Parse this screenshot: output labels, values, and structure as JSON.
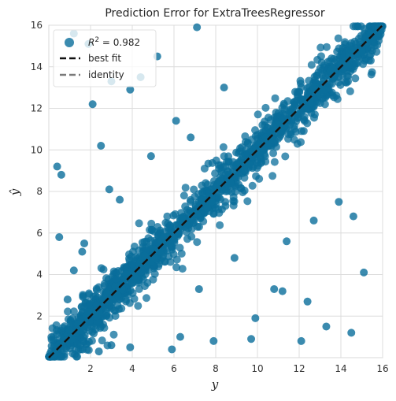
{
  "chart_data": {
    "type": "scatter",
    "title": "Prediction Error for ExtraTreesRegressor",
    "xlabel": "y",
    "ylabel": "ŷ",
    "xlim": [
      0,
      16
    ],
    "ylim": [
      0,
      16
    ],
    "x_ticks": [
      "2",
      "4",
      "6",
      "8",
      "10",
      "12",
      "14",
      "16"
    ],
    "y_ticks": [
      "2",
      "4",
      "6",
      "8",
      "10",
      "12",
      "14",
      "16"
    ],
    "grid": true,
    "legend_position": "top-left",
    "legend": {
      "r2_label": "R",
      "r2_value": " = 0.982",
      "best_fit_label": "best fit",
      "identity_label": "identity"
    },
    "point_color": "#0a6e9b",
    "best_fit_color": "#111111",
    "identity_color": "#7a7a7a",
    "r2": 0.982,
    "best_fit_line": {
      "x": [
        0,
        16
      ],
      "y": [
        0,
        16
      ]
    },
    "identity_line": {
      "x": [
        0,
        16
      ],
      "y": [
        0,
        16
      ]
    },
    "points_x": [
      0.2,
      0.5,
      0.8,
      1.1,
      1.4,
      1.7,
      2.0,
      2.3,
      2.6,
      2.9,
      3.2,
      3.5,
      3.8,
      4.1,
      4.4,
      4.7,
      5.0,
      5.3,
      5.6,
      5.9,
      6.2,
      6.5,
      6.8,
      7.1,
      7.4,
      7.7,
      8.0,
      8.3,
      8.6,
      8.9,
      9.2,
      9.5,
      9.8,
      10.1,
      10.4,
      10.7,
      11.0,
      11.3,
      11.6,
      11.9,
      12.2,
      12.5,
      12.8,
      13.1,
      13.4,
      13.7,
      14.0,
      14.3,
      14.6,
      14.9,
      15.2,
      15.5,
      15.8,
      0.4,
      0.9,
      1.3,
      1.8,
      2.2,
      2.7,
      3.1,
      3.6,
      4.0,
      4.5,
      4.9,
      5.4,
      5.8,
      6.3,
      6.7,
      7.2,
      7.6,
      8.1,
      8.5,
      9.0,
      9.4,
      9.9,
      10.3,
      10.8,
      11.2,
      11.7,
      12.1,
      12.6,
      13.0,
      13.5,
      13.9,
      14.4,
      14.8,
      15.3,
      15.7,
      0.3,
      0.7,
      1.0,
      1.5,
      1.9,
      2.4,
      2.8,
      3.3,
      3.7,
      4.2,
      4.6,
      5.1,
      5.5,
      6.0,
      6.4,
      6.9,
      7.3,
      7.8,
      8.2,
      8.7,
      9.1,
      9.6,
      10.0,
      10.5,
      10.9,
      11.4,
      11.8,
      12.3,
      12.7,
      13.2,
      13.6,
      14.1,
      14.5,
      15.0,
      15.4,
      15.9,
      1.2,
      1.9,
      2.1,
      0.6,
      2.5,
      1.6,
      3.0,
      0.4,
      3.9,
      5.2,
      4.4,
      2.9,
      6.1,
      7.1,
      3.4,
      8.4,
      1.7,
      9.7,
      11.2,
      12.1,
      13.3,
      14.5,
      15.1,
      14.6,
      13.9,
      12.4,
      10.8,
      9.9,
      7.9,
      6.3,
      5.9,
      3.9,
      3.0,
      2.4,
      1.2,
      0.9,
      0.5,
      8.9,
      7.2,
      11.4,
      12.7,
      6.8,
      4.9
    ],
    "points_y": [
      0.1,
      0.6,
      1.0,
      0.9,
      1.6,
      1.5,
      2.2,
      2.0,
      2.8,
      2.7,
      3.4,
      3.3,
      4.0,
      3.9,
      4.6,
      4.5,
      5.2,
      5.1,
      5.8,
      5.7,
      6.4,
      6.3,
      7.0,
      6.9,
      7.6,
      7.5,
      8.2,
      8.1,
      8.8,
      8.7,
      9.4,
      9.3,
      10.0,
      9.9,
      10.6,
      10.5,
      11.2,
      11.1,
      11.8,
      11.7,
      12.4,
      12.3,
      13.0,
      12.9,
      13.6,
      13.5,
      14.2,
      14.1,
      14.8,
      14.7,
      15.4,
      15.3,
      15.9,
      0.5,
      1.1,
      1.2,
      2.0,
      2.1,
      2.9,
      2.8,
      3.9,
      3.6,
      4.8,
      4.6,
      5.6,
      5.5,
      6.6,
      6.4,
      7.5,
      7.2,
      8.4,
      8.0,
      9.3,
      9.0,
      10.2,
      10.0,
      11.1,
      10.9,
      12.0,
      11.8,
      12.9,
      12.7,
      13.8,
      13.5,
      14.6,
      14.5,
      15.4,
      15.5,
      0.2,
      0.8,
      1.3,
      1.3,
      2.2,
      2.2,
      3.1,
      3.0,
      4.0,
      3.8,
      4.9,
      4.8,
      5.8,
      5.7,
      6.7,
      6.6,
      7.6,
      7.5,
      8.5,
      8.4,
      9.4,
      9.3,
      10.3,
      10.2,
      11.2,
      11.1,
      12.1,
      12.0,
      13.0,
      12.9,
      13.9,
      13.8,
      14.8,
      14.7,
      15.6,
      15.7,
      15.6,
      15.1,
      12.2,
      8.8,
      10.2,
      5.1,
      13.3,
      9.2,
      12.9,
      14.5,
      13.5,
      8.1,
      11.4,
      15.9,
      7.6,
      13.0,
      5.5,
      0.9,
      3.2,
      0.8,
      1.5,
      1.2,
      4.1,
      6.8,
      7.5,
      2.7,
      3.3,
      1.9,
      0.8,
      1.0,
      0.4,
      0.5,
      0.6,
      0.3,
      4.2,
      2.8,
      5.8,
      4.8,
      3.3,
      5.6,
      6.6,
      10.6,
      9.7
    ]
  }
}
